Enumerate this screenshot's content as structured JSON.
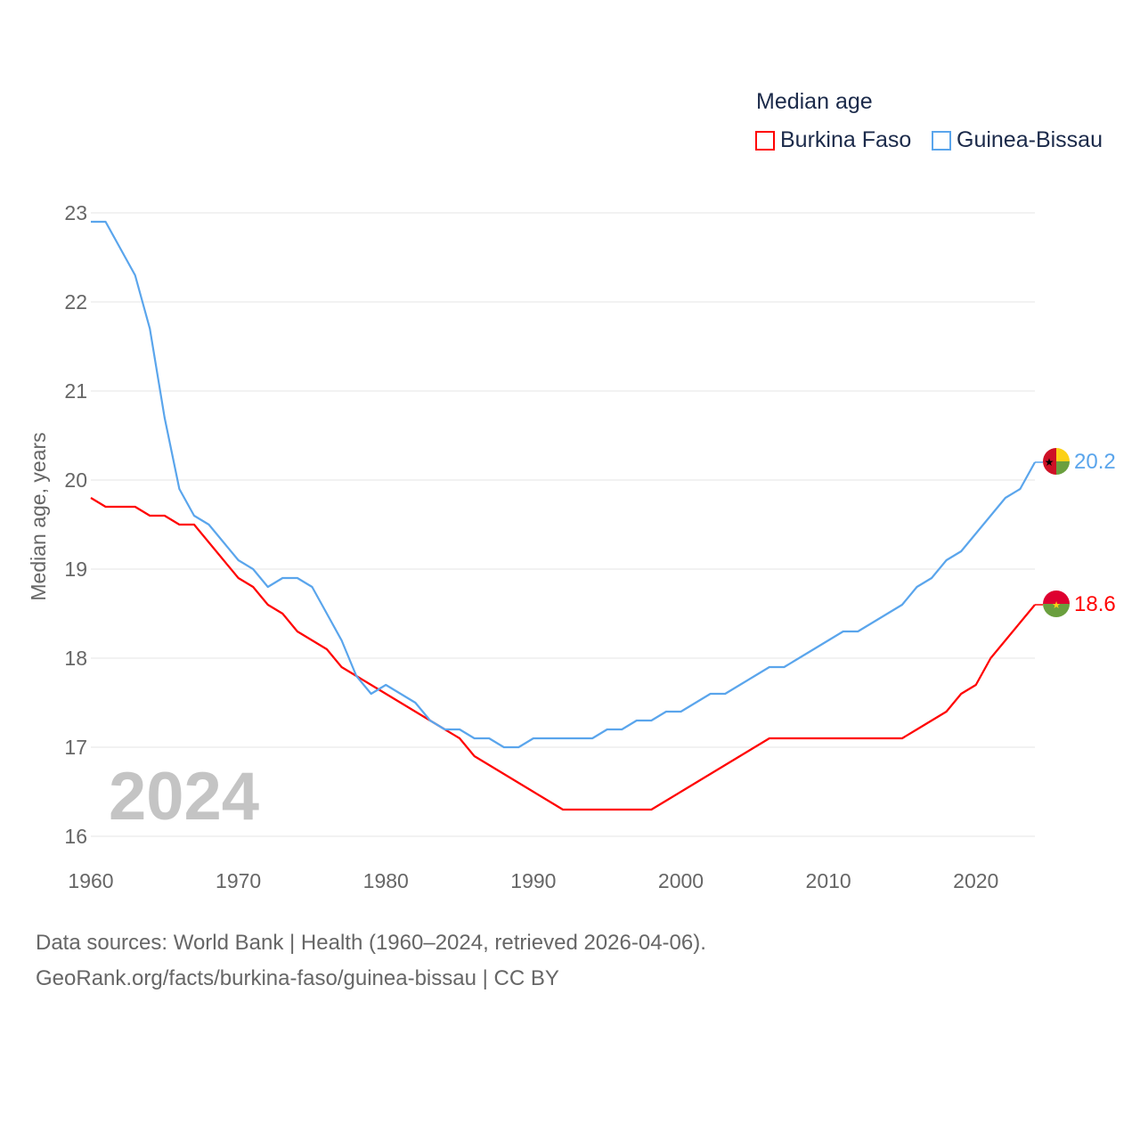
{
  "chart_data": {
    "type": "line",
    "title": "Median age",
    "xlabel": "",
    "ylabel": "Median age, years",
    "xlim": [
      1960,
      2024
    ],
    "ylim": [
      16,
      23
    ],
    "x_ticks": [
      "1960",
      "1970",
      "1980",
      "1990",
      "2000",
      "2010",
      "2020"
    ],
    "y_ticks": [
      "16",
      "17",
      "18",
      "19",
      "20",
      "21",
      "22",
      "23"
    ],
    "grid": true,
    "legend_position": "top-right",
    "year_label": "2024",
    "x": [
      1960,
      1961,
      1962,
      1963,
      1964,
      1965,
      1966,
      1967,
      1968,
      1969,
      1970,
      1971,
      1972,
      1973,
      1974,
      1975,
      1976,
      1977,
      1978,
      1979,
      1980,
      1981,
      1982,
      1983,
      1984,
      1985,
      1986,
      1987,
      1988,
      1989,
      1990,
      1991,
      1992,
      1993,
      1994,
      1995,
      1996,
      1997,
      1998,
      1999,
      2000,
      2001,
      2002,
      2003,
      2004,
      2005,
      2006,
      2007,
      2008,
      2009,
      2010,
      2011,
      2012,
      2013,
      2014,
      2015,
      2016,
      2017,
      2018,
      2019,
      2020,
      2021,
      2022,
      2023,
      2024
    ],
    "series": [
      {
        "name": "Burkina Faso",
        "color": "#ff0000",
        "end_label": "18.6",
        "values": [
          19.8,
          19.7,
          19.7,
          19.7,
          19.6,
          19.6,
          19.5,
          19.5,
          19.3,
          19.1,
          18.9,
          18.8,
          18.6,
          18.5,
          18.3,
          18.2,
          18.1,
          17.9,
          17.8,
          17.7,
          17.6,
          17.5,
          17.4,
          17.3,
          17.2,
          17.1,
          16.9,
          16.8,
          16.7,
          16.6,
          16.5,
          16.4,
          16.3,
          16.3,
          16.3,
          16.3,
          16.3,
          16.3,
          16.3,
          16.4,
          16.5,
          16.6,
          16.7,
          16.8,
          16.9,
          17.0,
          17.1,
          17.1,
          17.1,
          17.1,
          17.1,
          17.1,
          17.1,
          17.1,
          17.1,
          17.1,
          17.2,
          17.3,
          17.4,
          17.6,
          17.7,
          18.0,
          18.2,
          18.4,
          18.6
        ]
      },
      {
        "name": "Guinea-Bissau",
        "color": "#5aa5ec",
        "end_label": "20.2",
        "values": [
          22.9,
          22.9,
          22.6,
          22.3,
          21.7,
          20.7,
          19.9,
          19.6,
          19.5,
          19.3,
          19.1,
          19.0,
          18.8,
          18.9,
          18.9,
          18.8,
          18.5,
          18.2,
          17.8,
          17.6,
          17.7,
          17.6,
          17.5,
          17.3,
          17.2,
          17.2,
          17.1,
          17.1,
          17.0,
          17.0,
          17.1,
          17.1,
          17.1,
          17.1,
          17.1,
          17.2,
          17.2,
          17.3,
          17.3,
          17.4,
          17.4,
          17.5,
          17.6,
          17.6,
          17.7,
          17.8,
          17.9,
          17.9,
          18.0,
          18.1,
          18.2,
          18.3,
          18.3,
          18.4,
          18.5,
          18.6,
          18.8,
          18.9,
          19.1,
          19.2,
          19.4,
          19.6,
          19.8,
          19.9,
          20.2
        ]
      }
    ]
  },
  "footer": {
    "line1": "Data sources: World Bank | Health (1960–2024, retrieved 2026-04-06).",
    "line2": "GeoRank.org/facts/burkina-faso/guinea-bissau | CC BY"
  }
}
